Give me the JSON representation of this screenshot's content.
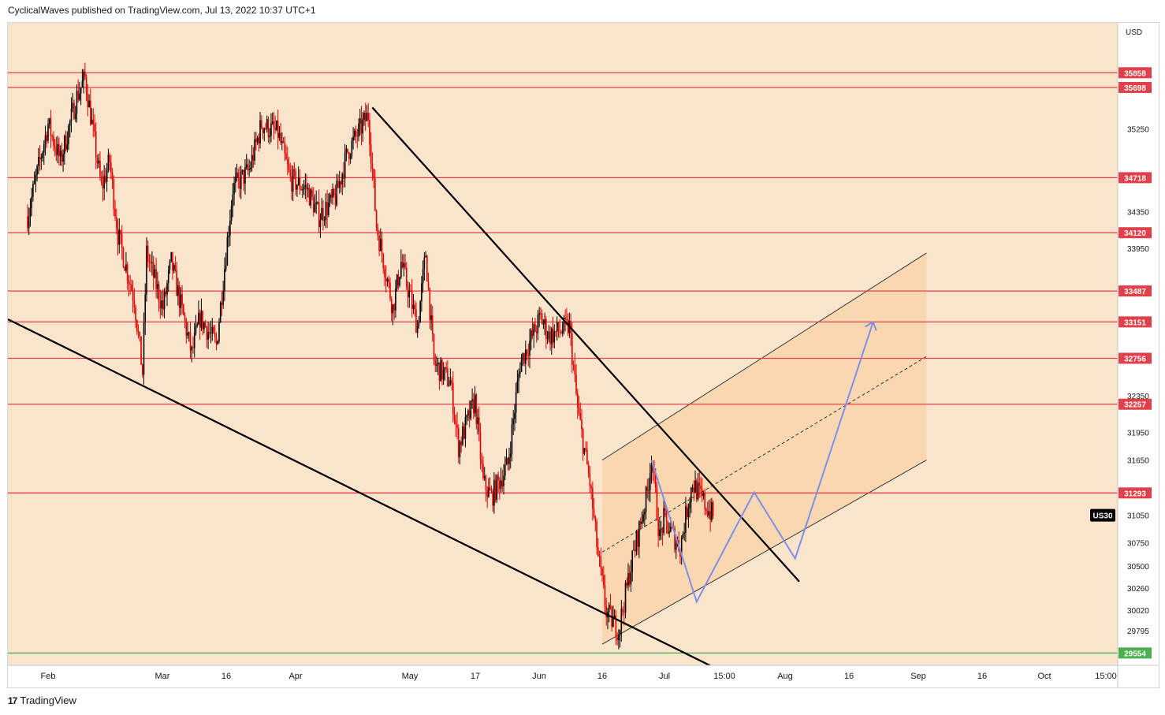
{
  "header": {
    "text": "CyclicalWaves published on TradingView.com, Jul 13, 2022 10:37 UTC+1"
  },
  "footer": {
    "logo_icon": "tradingview-logo-icon",
    "brand": "TradingView"
  },
  "colors": {
    "plot_bg": "#fbe4cc",
    "channel_fill": "#f8d3a8",
    "candle_up": "#000000",
    "candle_down": "#e00000",
    "support_line": "#e0404a",
    "bottom_line": "#4caf50",
    "trendline": "#000000",
    "projection": "#7f8ee8",
    "ticker_bg": "#000000"
  },
  "chart_data": {
    "type": "candlestick",
    "instrument": "US30",
    "currency": "USD",
    "x_tick_labels": [
      "Feb",
      "Mar",
      "16",
      "Apr",
      "May",
      "17",
      "Jun",
      "16",
      "Jul",
      "15:00",
      "Aug",
      "16",
      "Sep",
      "16",
      "Oct",
      "15:00"
    ],
    "y_tick_labels": [
      35250,
      34350,
      33950,
      32350,
      31950,
      31650,
      31050,
      30750,
      30500,
      30260,
      30020,
      29795
    ],
    "ylim": [
      29420,
      36400
    ],
    "horizontal_levels": [
      35858,
      35698,
      34718,
      34120,
      33487,
      33151,
      32756,
      32257,
      31293
    ],
    "support_level": 29554,
    "ticker_label": "US30",
    "price_path": [
      [
        "2022-01-27",
        34300
      ],
      [
        "2022-02-01",
        35300
      ],
      [
        "2022-02-04",
        34900
      ],
      [
        "2022-02-08",
        35600
      ],
      [
        "2022-02-10",
        35800
      ],
      [
        "2022-02-14",
        34600
      ],
      [
        "2022-02-16",
        34900
      ],
      [
        "2022-02-18",
        34100
      ],
      [
        "2022-02-22",
        33400
      ],
      [
        "2022-02-24",
        32600
      ],
      [
        "2022-02-25",
        33900
      ],
      [
        "2022-03-01",
        33300
      ],
      [
        "2022-03-03",
        33800
      ],
      [
        "2022-03-08",
        32800
      ],
      [
        "2022-03-10",
        33200
      ],
      [
        "2022-03-14",
        32900
      ],
      [
        "2022-03-18",
        34600
      ],
      [
        "2022-03-22",
        34800
      ],
      [
        "2022-03-25",
        35300
      ],
      [
        "2022-03-29",
        35200
      ],
      [
        "2022-04-01",
        34700
      ],
      [
        "2022-04-05",
        34600
      ],
      [
        "2022-04-08",
        34300
      ],
      [
        "2022-04-12",
        34500
      ],
      [
        "2022-04-15",
        35000
      ],
      [
        "2022-04-20",
        35400
      ],
      [
        "2022-04-22",
        34200
      ],
      [
        "2022-04-26",
        33300
      ],
      [
        "2022-04-28",
        33800
      ],
      [
        "2022-05-02",
        33100
      ],
      [
        "2022-05-04",
        33900
      ],
      [
        "2022-05-06",
        32700
      ],
      [
        "2022-05-10",
        32500
      ],
      [
        "2022-05-12",
        31800
      ],
      [
        "2022-05-16",
        32300
      ],
      [
        "2022-05-18",
        31400
      ],
      [
        "2022-05-20",
        31250
      ],
      [
        "2022-05-24",
        31600
      ],
      [
        "2022-05-27",
        32700
      ],
      [
        "2022-06-01",
        33200
      ],
      [
        "2022-06-03",
        33000
      ],
      [
        "2022-06-08",
        33100
      ],
      [
        "2022-06-10",
        32200
      ],
      [
        "2022-06-13",
        31400
      ],
      [
        "2022-06-15",
        30600
      ],
      [
        "2022-06-17",
        30000
      ],
      [
        "2022-06-20",
        29800
      ],
      [
        "2022-06-23",
        30500
      ],
      [
        "2022-06-27",
        31300
      ],
      [
        "2022-06-28",
        31700
      ],
      [
        "2022-06-30",
        30800
      ],
      [
        "2022-07-01",
        31000
      ],
      [
        "2022-07-05",
        30700
      ],
      [
        "2022-07-07",
        31200
      ],
      [
        "2022-07-08",
        31400
      ],
      [
        "2022-07-12",
        31100
      ],
      [
        "2022-07-13",
        31050
      ]
    ]
  }
}
